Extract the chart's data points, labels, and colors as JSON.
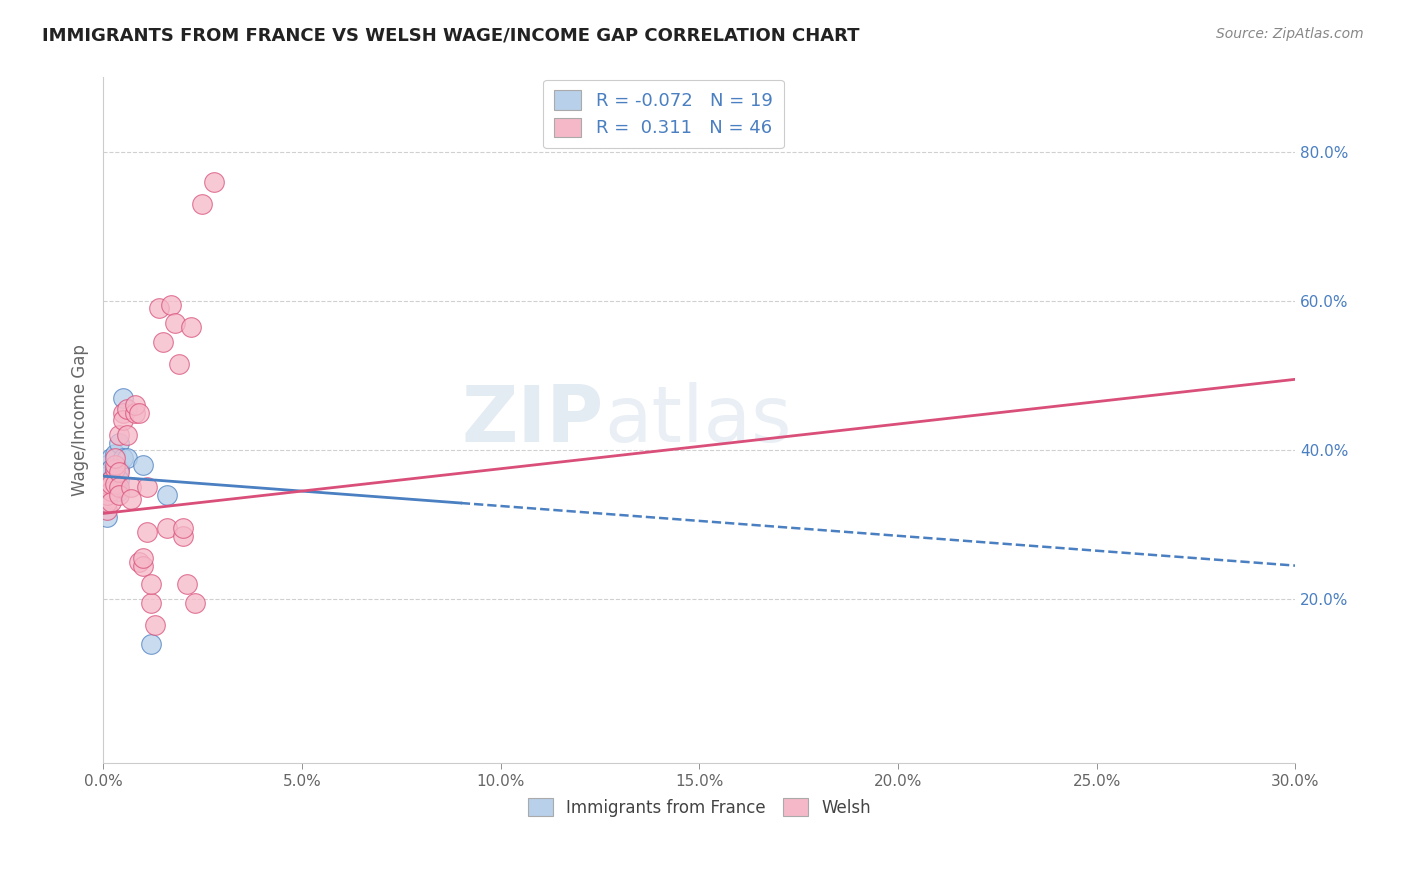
{
  "title": "IMMIGRANTS FROM FRANCE VS WELSH WAGE/INCOME GAP CORRELATION CHART",
  "source": "Source: ZipAtlas.com",
  "xlabel": "",
  "ylabel": "Wage/Income Gap",
  "legend_labels": [
    "Immigrants from France",
    "Welsh"
  ],
  "r_blue": -0.072,
  "n_blue": 19,
  "r_pink": 0.311,
  "n_pink": 46,
  "xlim": [
    0.0,
    0.3
  ],
  "ylim": [
    -0.02,
    0.9
  ],
  "blue_color": "#b8d0ea",
  "pink_color": "#f5b8c8",
  "blue_line_color": "#4a7fc1",
  "pink_line_color": "#d94f7a",
  "watermark": "ZIPatlas",
  "blue_points": [
    [
      0.001,
      0.38
    ],
    [
      0.001,
      0.365
    ],
    [
      0.002,
      0.39
    ],
    [
      0.002,
      0.375
    ],
    [
      0.002,
      0.36
    ],
    [
      0.003,
      0.395
    ],
    [
      0.003,
      0.37
    ],
    [
      0.003,
      0.355
    ],
    [
      0.004,
      0.41
    ],
    [
      0.004,
      0.375
    ],
    [
      0.004,
      0.36
    ],
    [
      0.004,
      0.345
    ],
    [
      0.005,
      0.47
    ],
    [
      0.005,
      0.39
    ],
    [
      0.006,
      0.39
    ],
    [
      0.01,
      0.38
    ],
    [
      0.012,
      0.14
    ],
    [
      0.016,
      0.34
    ],
    [
      0.001,
      0.31
    ]
  ],
  "pink_points": [
    [
      0.001,
      0.32
    ],
    [
      0.001,
      0.33
    ],
    [
      0.001,
      0.34
    ],
    [
      0.001,
      0.355
    ],
    [
      0.002,
      0.36
    ],
    [
      0.002,
      0.345
    ],
    [
      0.002,
      0.355
    ],
    [
      0.002,
      0.33
    ],
    [
      0.003,
      0.375
    ],
    [
      0.003,
      0.355
    ],
    [
      0.003,
      0.38
    ],
    [
      0.003,
      0.39
    ],
    [
      0.004,
      0.37
    ],
    [
      0.004,
      0.35
    ],
    [
      0.004,
      0.42
    ],
    [
      0.004,
      0.34
    ],
    [
      0.005,
      0.45
    ],
    [
      0.005,
      0.44
    ],
    [
      0.006,
      0.455
    ],
    [
      0.006,
      0.42
    ],
    [
      0.007,
      0.35
    ],
    [
      0.007,
      0.335
    ],
    [
      0.008,
      0.45
    ],
    [
      0.008,
      0.46
    ],
    [
      0.009,
      0.45
    ],
    [
      0.009,
      0.25
    ],
    [
      0.01,
      0.245
    ],
    [
      0.01,
      0.255
    ],
    [
      0.011,
      0.35
    ],
    [
      0.011,
      0.29
    ],
    [
      0.012,
      0.195
    ],
    [
      0.012,
      0.22
    ],
    [
      0.013,
      0.165
    ],
    [
      0.014,
      0.59
    ],
    [
      0.015,
      0.545
    ],
    [
      0.016,
      0.295
    ],
    [
      0.017,
      0.595
    ],
    [
      0.018,
      0.57
    ],
    [
      0.019,
      0.515
    ],
    [
      0.02,
      0.285
    ],
    [
      0.02,
      0.295
    ],
    [
      0.021,
      0.22
    ],
    [
      0.022,
      0.565
    ],
    [
      0.023,
      0.195
    ],
    [
      0.025,
      0.73
    ],
    [
      0.028,
      0.76
    ]
  ],
  "blue_intercept": 0.365,
  "blue_slope": -0.4,
  "pink_intercept": 0.315,
  "pink_slope": 0.6
}
